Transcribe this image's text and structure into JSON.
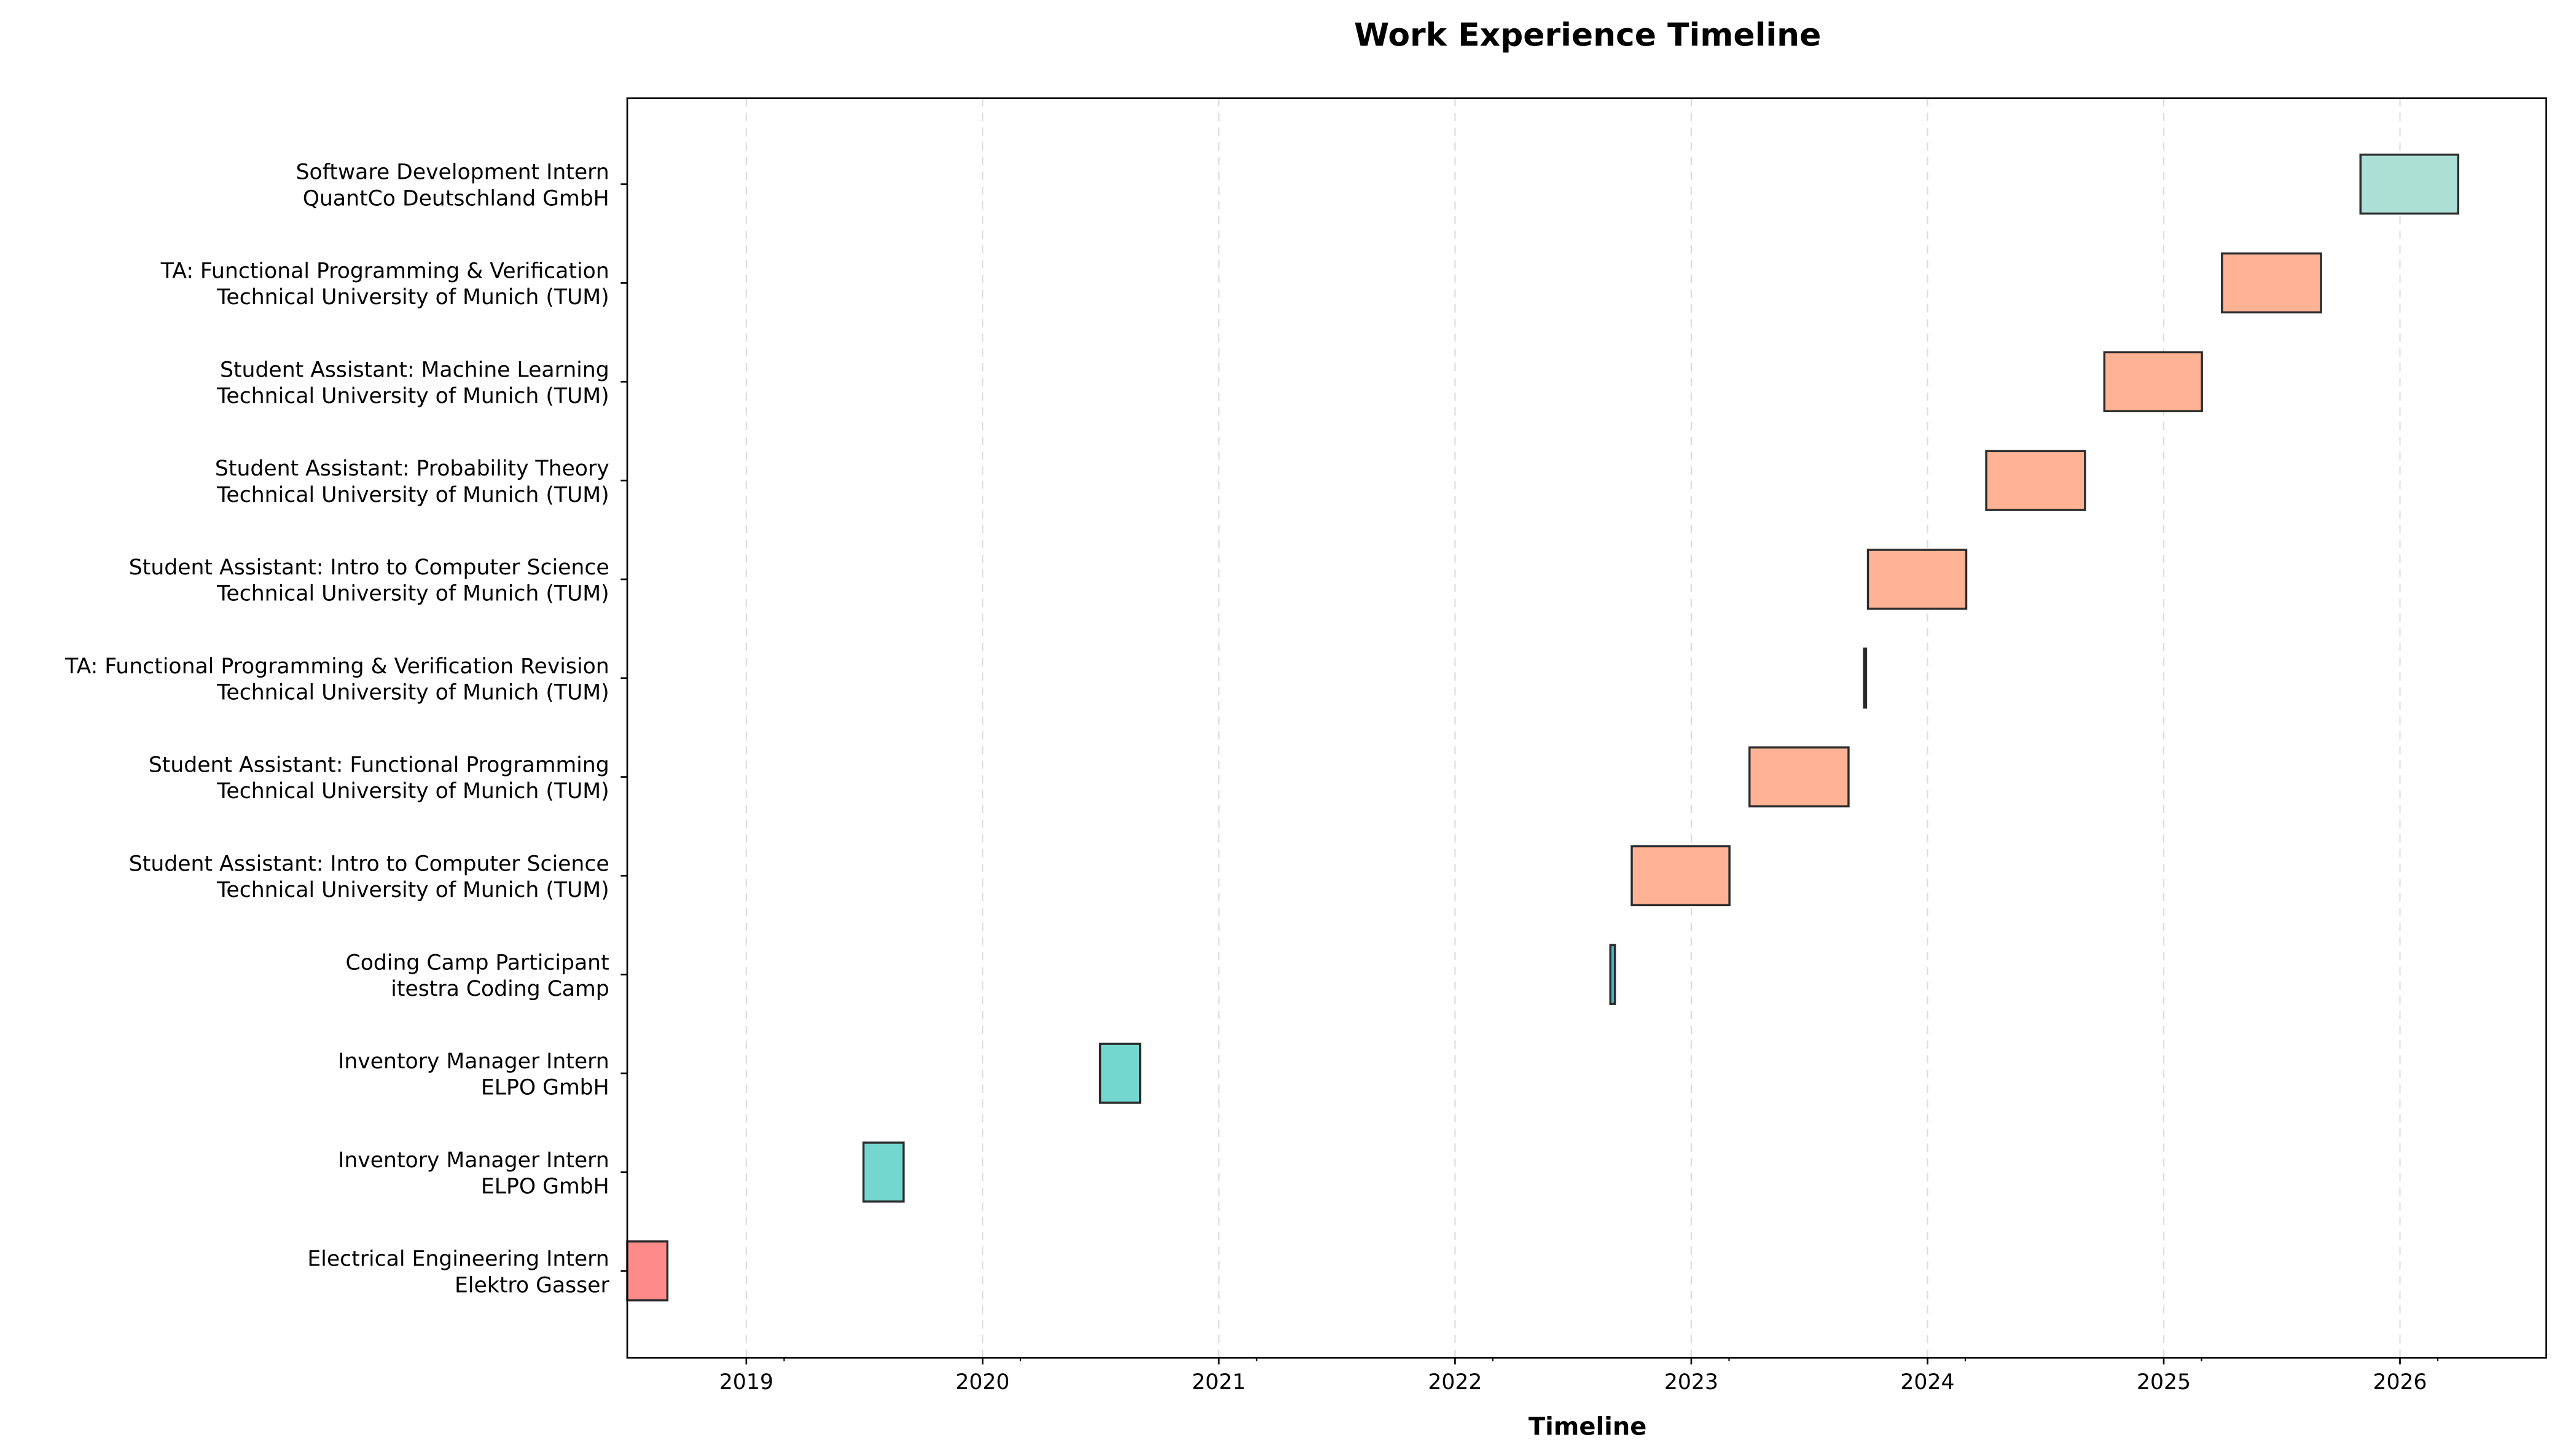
{
  "chart_data": {
    "type": "bar",
    "orientation": "horizontal-timeline",
    "title": "Work Experience Timeline",
    "xlabel": "Timeline",
    "ylabel": "",
    "xlim": [
      "2018-07-01",
      "2026-08-15"
    ],
    "x_ticks": [
      "2019",
      "2020",
      "2021",
      "2022",
      "2023",
      "2024",
      "2025",
      "2026"
    ],
    "grid": "vertical dashed at years",
    "legend": "none",
    "series": [
      {
        "role": "Electrical Engineering Intern",
        "org": "Elektro Gasser",
        "start": "2018-07-01",
        "end": "2018-09-01",
        "color": "#FF8A8A"
      },
      {
        "role": "Inventory Manager Intern",
        "org": "ELPO GmbH",
        "start": "2019-07-01",
        "end": "2019-09-01",
        "color": "#74D7CF"
      },
      {
        "role": "Inventory Manager Intern",
        "org": "ELPO GmbH",
        "start": "2020-07-01",
        "end": "2020-09-01",
        "color": "#74D7CF"
      },
      {
        "role": "Coding Camp Participant",
        "org": "itestra Coding Camp",
        "start": "2022-08-29",
        "end": "2022-09-05",
        "color": "#45B7D1"
      },
      {
        "role": "Student Assistant: Intro to Computer Science",
        "org": "Technical University of Munich (TUM)",
        "start": "2022-10-01",
        "end": "2023-03-01",
        "color": "#FFB394"
      },
      {
        "role": "Student Assistant: Functional Programming",
        "org": "Technical University of Munich (TUM)",
        "start": "2023-04-01",
        "end": "2023-09-01",
        "color": "#FFB394"
      },
      {
        "role": "TA: Functional Programming & Verification Revision",
        "org": "Technical University of Munich (TUM)",
        "start": "2023-09-25",
        "end": "2023-09-27",
        "color": "#FFB394"
      },
      {
        "role": "Student Assistant: Intro to Computer Science",
        "org": "Technical University of Munich (TUM)",
        "start": "2023-10-01",
        "end": "2024-03-01",
        "color": "#FFB394"
      },
      {
        "role": "Student Assistant: Probability Theory",
        "org": "Technical University of Munich (TUM)",
        "start": "2024-04-01",
        "end": "2024-09-01",
        "color": "#FFB394"
      },
      {
        "role": "Student Assistant: Machine Learning",
        "org": "Technical University of Munich (TUM)",
        "start": "2024-10-01",
        "end": "2025-03-01",
        "color": "#FFB394"
      },
      {
        "role": "TA: Functional Programming & Verification",
        "org": "Technical University of Munich (TUM)",
        "start": "2025-04-01",
        "end": "2025-09-01",
        "color": "#FFB394"
      },
      {
        "role": "Software Development Intern",
        "org": "QuantCo Deutschland GmbH",
        "start": "2025-11-01",
        "end": "2026-04-01",
        "color": "#ADE0D5"
      }
    ]
  }
}
